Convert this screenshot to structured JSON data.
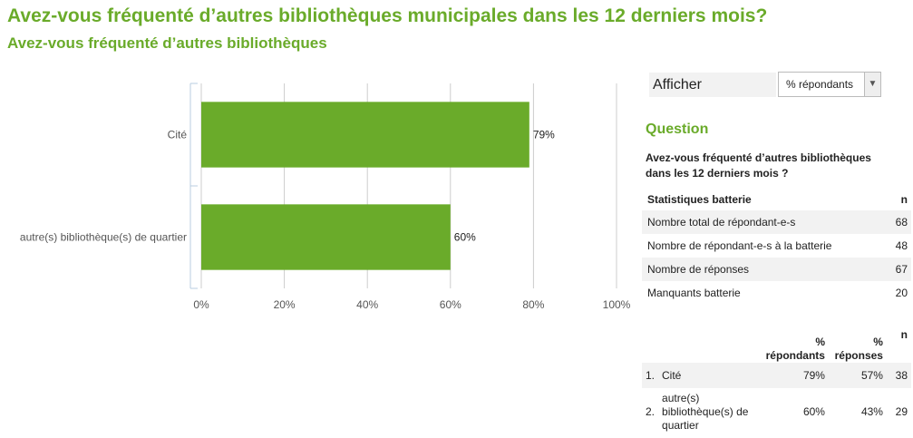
{
  "page": {
    "title": "Avez-vous fréquenté d’autres bibliothèques municipales dans les 12 derniers mois?",
    "subtitle": "Avez-vous fréquenté d’autres bibliothèques"
  },
  "chart_data": {
    "type": "bar",
    "orientation": "horizontal",
    "categories": [
      "Cité",
      "autre(s) bibliothèque(s) de quartier"
    ],
    "values": [
      79,
      60
    ],
    "value_labels": [
      "79%",
      "60%"
    ],
    "x_ticks": [
      "0%",
      "20%",
      "40%",
      "60%",
      "80%",
      "100%"
    ],
    "xlim": [
      0,
      100
    ],
    "grid": true,
    "bar_color": "#6aab2a"
  },
  "controls": {
    "afficher_label": "Afficher",
    "select_value": "% répondants"
  },
  "question": {
    "heading": "Question",
    "text": "Avez-vous fréquenté d’autres bibliothèques dans les 12 derniers mois ?"
  },
  "stats": {
    "header_label": "Statistiques batterie",
    "header_n": "n",
    "rows": [
      {
        "label": "Nombre total de répondant-e-s",
        "n": "68"
      },
      {
        "label": "Nombre de répondant-e-s à la batterie",
        "n": "48"
      },
      {
        "label": "Nombre de réponses",
        "n": "67"
      },
      {
        "label": "Manquants batterie",
        "n": "20"
      }
    ]
  },
  "frequencies": {
    "headers": {
      "pct_respondants": "% répondants",
      "pct_reponses": "% réponses",
      "n": "n"
    },
    "rows": [
      {
        "index": "1.",
        "label": "Cité",
        "pct_respondants": "79%",
        "pct_reponses": "57%",
        "n": "38"
      },
      {
        "index": "2.",
        "label": "autre(s) bibliothèque(s) de quartier",
        "pct_respondants": "60%",
        "pct_reponses": "43%",
        "n": "29"
      }
    ]
  }
}
